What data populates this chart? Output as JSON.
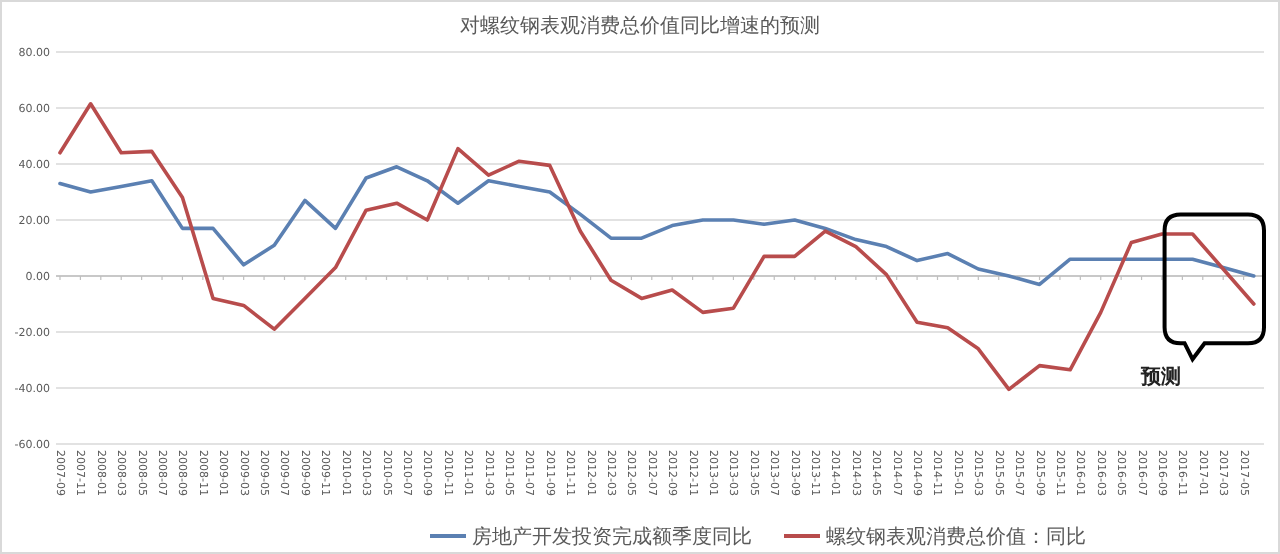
{
  "chart_data": {
    "type": "line",
    "title": "对螺纹钢表观消费总价值同比增速的预测",
    "x": [
      "2007-09",
      "2007-12",
      "2008-03",
      "2008-06",
      "2008-09",
      "2008-12",
      "2009-03",
      "2009-06",
      "2009-09",
      "2009-12",
      "2010-03",
      "2010-06",
      "2010-09",
      "2010-12",
      "2011-03",
      "2011-06",
      "2011-09",
      "2011-12",
      "2012-03",
      "2012-06",
      "2012-09",
      "2012-12",
      "2013-03",
      "2013-06",
      "2013-09",
      "2013-12",
      "2014-03",
      "2014-06",
      "2014-09",
      "2014-12",
      "2015-03",
      "2015-06",
      "2015-09",
      "2015-12",
      "2016-03",
      "2016-06",
      "2016-09",
      "2016-12",
      "2017-03",
      "2017-06"
    ],
    "series": [
      {
        "name": "房地产开发投资完成额季度同比",
        "color": "#5b80b2",
        "values": [
          33,
          30,
          32,
          34,
          17,
          17,
          4,
          11,
          27,
          17,
          35,
          39,
          34,
          26,
          34,
          32,
          30,
          22,
          13.5,
          13.5,
          18,
          20,
          20,
          18.5,
          20,
          17,
          13,
          10.5,
          5.5,
          8,
          2.5,
          0,
          -3,
          6,
          6,
          6,
          6,
          6,
          3,
          0
        ]
      },
      {
        "name": "螺纹钢表观消费总价值：同比",
        "color": "#b84c4c",
        "values": [
          44,
          61.5,
          44,
          44.5,
          28,
          -8,
          -10.5,
          -19,
          -8,
          3,
          23.5,
          26,
          20,
          45.5,
          36,
          41,
          39.5,
          16,
          -1.5,
          -8,
          -5,
          -13,
          -11.5,
          7,
          7,
          16,
          10.5,
          0.5,
          -16.5,
          -18.5,
          -26,
          -40.5,
          -32,
          -33.5,
          -13,
          12,
          15,
          15,
          2.5,
          -10
        ]
      }
    ],
    "xlim": [
      "2007-09",
      "2017-07"
    ],
    "xticks": [
      "2007-09",
      "2007-11",
      "2008-01",
      "2008-03",
      "2008-05",
      "2008-07",
      "2008-09",
      "2008-11",
      "2009-01",
      "2009-03",
      "2009-05",
      "2009-07",
      "2009-09",
      "2009-11",
      "2010-01",
      "2010-03",
      "2010-05",
      "2010-07",
      "2010-09",
      "2010-11",
      "2011-01",
      "2011-03",
      "2011-05",
      "2011-07",
      "2011-09",
      "2011-11",
      "2012-01",
      "2012-03",
      "2012-05",
      "2012-07",
      "2012-09",
      "2012-11",
      "2013-01",
      "2013-03",
      "2013-05",
      "2013-07",
      "2013-09",
      "2013-11",
      "2014-01",
      "2014-03",
      "2014-05",
      "2014-07",
      "2014-09",
      "2014-11",
      "2015-01",
      "2015-03",
      "2015-05",
      "2015-07",
      "2015-09",
      "2015-11",
      "2016-01",
      "2016-03",
      "2016-05",
      "2016-07",
      "2016-09",
      "2016-11",
      "2017-01",
      "2017-03",
      "2017-05"
    ],
    "ylim": [
      -60,
      80
    ],
    "yticks": [
      {
        "value": -60,
        "label": "-60.00"
      },
      {
        "value": -40,
        "label": "-40.00"
      },
      {
        "value": -20,
        "label": "-20.00"
      },
      {
        "value": 0,
        "label": "0.00"
      },
      {
        "value": 20,
        "label": "20.00"
      },
      {
        "value": 40,
        "label": "40.00"
      },
      {
        "value": 60,
        "label": "60.00"
      },
      {
        "value": 80,
        "label": "80.00"
      }
    ],
    "grid": "y",
    "legend": "bottom",
    "marker": "none",
    "line_style": "solid",
    "annotations": [
      "预测"
    ]
  }
}
